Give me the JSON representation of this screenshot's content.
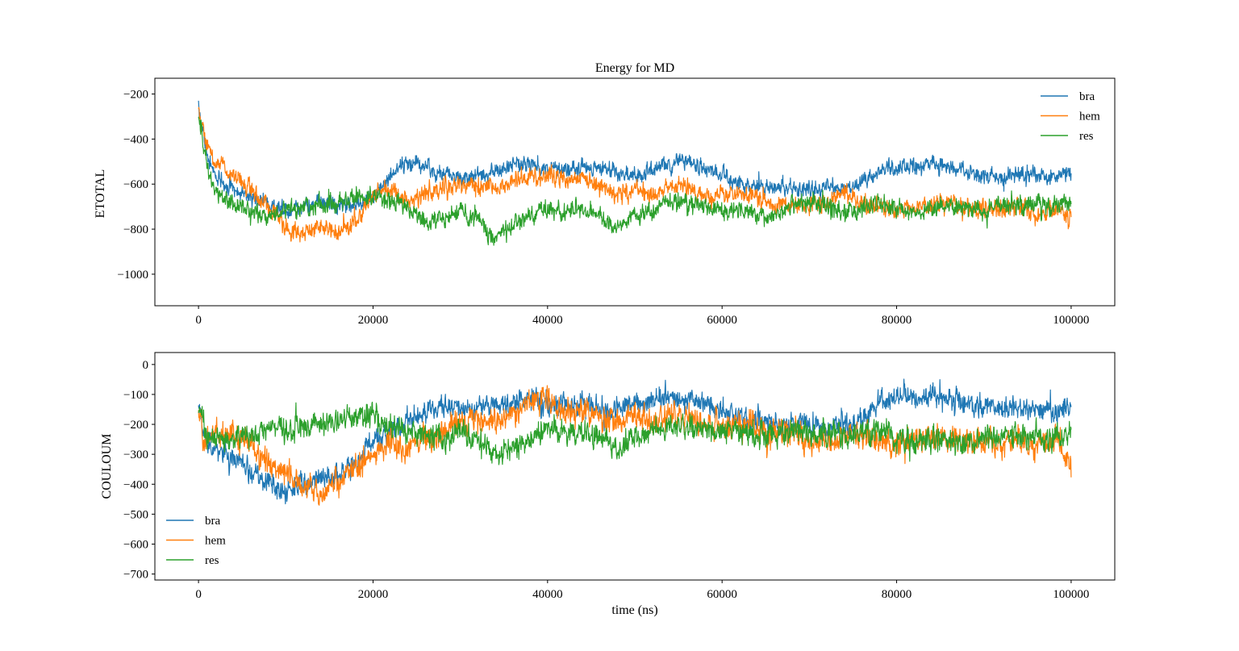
{
  "figure": {
    "title": "Energy for MD",
    "xlabel": "time (ns)"
  },
  "colors": {
    "bra": "#1f77b4",
    "hem": "#ff7f0e",
    "res": "#2ca02c"
  },
  "chart_data": [
    {
      "type": "line",
      "title": "Energy for MD",
      "xlabel": "",
      "ylabel": "ETOTAL",
      "xlim": [
        -5000,
        105000
      ],
      "ylim": [
        -1140,
        -130
      ],
      "xticks": [
        0,
        20000,
        40000,
        60000,
        80000,
        100000
      ],
      "xtick_labels": [
        "0",
        "20000",
        "40000",
        "60000",
        "80000",
        "100000"
      ],
      "yticks": [
        -1000,
        -800,
        -600,
        -400,
        -200
      ],
      "ytick_labels": [
        "−1000",
        "−800",
        "−600",
        "−400",
        "−200"
      ],
      "grid": false,
      "legend_position": "top-right",
      "series": [
        {
          "name": "bra",
          "color": "#1f77b4",
          "x": [
            0,
            500,
            1000,
            2000,
            4000,
            6000,
            8000,
            10000,
            12000,
            14000,
            16000,
            18000,
            20000,
            22000,
            24000,
            26000,
            28000,
            30000,
            32000,
            34000,
            36000,
            38000,
            40000,
            42000,
            44000,
            46000,
            48000,
            50000,
            52000,
            54000,
            56000,
            58000,
            60000,
            62000,
            64000,
            66000,
            68000,
            70000,
            72000,
            74000,
            76000,
            78000,
            80000,
            82000,
            84000,
            86000,
            88000,
            90000,
            92000,
            94000,
            96000,
            98000,
            100000
          ],
          "y": [
            -250,
            -360,
            -480,
            -560,
            -620,
            -660,
            -690,
            -720,
            -700,
            -680,
            -690,
            -700,
            -650,
            -560,
            -500,
            -520,
            -560,
            -580,
            -560,
            -540,
            -520,
            -510,
            -530,
            -530,
            -520,
            -530,
            -540,
            -560,
            -540,
            -510,
            -500,
            -530,
            -560,
            -600,
            -610,
            -620,
            -620,
            -630,
            -620,
            -610,
            -600,
            -540,
            -530,
            -520,
            -510,
            -530,
            -550,
            -560,
            -580,
            -560,
            -550,
            -560,
            -550
          ],
          "noise": 45
        },
        {
          "name": "hem",
          "color": "#ff7f0e",
          "x": [
            0,
            500,
            1000,
            2000,
            4000,
            6000,
            8000,
            10000,
            12000,
            14000,
            16000,
            18000,
            20000,
            22000,
            24000,
            26000,
            28000,
            30000,
            32000,
            34000,
            36000,
            38000,
            40000,
            42000,
            44000,
            46000,
            48000,
            50000,
            52000,
            54000,
            56000,
            58000,
            60000,
            62000,
            64000,
            66000,
            68000,
            70000,
            72000,
            74000,
            76000,
            78000,
            80000,
            82000,
            84000,
            86000,
            88000,
            90000,
            92000,
            94000,
            96000,
            98000,
            100000
          ],
          "y": [
            -260,
            -350,
            -440,
            -500,
            -560,
            -620,
            -700,
            -790,
            -820,
            -800,
            -810,
            -780,
            -640,
            -620,
            -680,
            -640,
            -620,
            -600,
            -600,
            -620,
            -580,
            -560,
            -560,
            -580,
            -560,
            -600,
            -650,
            -620,
            -660,
            -600,
            -620,
            -660,
            -640,
            -640,
            -660,
            -700,
            -700,
            -700,
            -690,
            -640,
            -680,
            -700,
            -720,
            -690,
            -690,
            -680,
            -700,
            -700,
            -720,
            -690,
            -740,
            -700,
            -760
          ],
          "noise": 50
        },
        {
          "name": "res",
          "color": "#2ca02c",
          "x": [
            0,
            500,
            1000,
            2000,
            4000,
            6000,
            8000,
            10000,
            12000,
            14000,
            16000,
            18000,
            20000,
            22000,
            24000,
            26000,
            28000,
            30000,
            32000,
            34000,
            36000,
            38000,
            40000,
            42000,
            44000,
            46000,
            48000,
            50000,
            52000,
            54000,
            56000,
            58000,
            60000,
            62000,
            64000,
            66000,
            68000,
            70000,
            72000,
            74000,
            76000,
            78000,
            80000,
            82000,
            84000,
            86000,
            88000,
            90000,
            92000,
            94000,
            96000,
            98000,
            100000
          ],
          "y": [
            -310,
            -400,
            -520,
            -640,
            -700,
            -720,
            -740,
            -720,
            -700,
            -690,
            -680,
            -660,
            -650,
            -680,
            -700,
            -760,
            -760,
            -720,
            -760,
            -840,
            -790,
            -740,
            -710,
            -720,
            -720,
            -740,
            -800,
            -730,
            -720,
            -670,
            -680,
            -700,
            -720,
            -710,
            -740,
            -740,
            -700,
            -680,
            -700,
            -720,
            -700,
            -690,
            -700,
            -720,
            -710,
            -700,
            -720,
            -710,
            -700,
            -700,
            -690,
            -700,
            -690
          ],
          "noise": 50
        }
      ]
    },
    {
      "type": "line",
      "title": "",
      "xlabel": "time (ns)",
      "ylabel": "COULOUM",
      "xlim": [
        -5000,
        105000
      ],
      "ylim": [
        -720,
        40
      ],
      "xticks": [
        0,
        20000,
        40000,
        60000,
        80000,
        100000
      ],
      "xtick_labels": [
        "0",
        "20000",
        "40000",
        "60000",
        "80000",
        "100000"
      ],
      "yticks": [
        -700,
        -600,
        -500,
        -400,
        -300,
        -200,
        -100,
        0
      ],
      "ytick_labels": [
        "−700",
        "−600",
        "−500",
        "−400",
        "−300",
        "−200",
        "−100",
        "0"
      ],
      "grid": false,
      "legend_position": "bottom-left",
      "series": [
        {
          "name": "bra",
          "color": "#1f77b4",
          "x": [
            0,
            500,
            1000,
            2000,
            4000,
            6000,
            8000,
            10000,
            12000,
            14000,
            16000,
            18000,
            20000,
            22000,
            24000,
            26000,
            28000,
            30000,
            32000,
            34000,
            36000,
            38000,
            40000,
            42000,
            44000,
            46000,
            48000,
            50000,
            52000,
            54000,
            56000,
            58000,
            60000,
            62000,
            64000,
            66000,
            68000,
            70000,
            72000,
            74000,
            76000,
            78000,
            80000,
            82000,
            84000,
            86000,
            88000,
            90000,
            92000,
            94000,
            96000,
            98000,
            100000
          ],
          "y": [
            -120,
            -200,
            -250,
            -280,
            -310,
            -370,
            -390,
            -420,
            -400,
            -380,
            -370,
            -330,
            -260,
            -220,
            -180,
            -160,
            -150,
            -140,
            -150,
            -130,
            -130,
            -120,
            -130,
            -140,
            -130,
            -150,
            -150,
            -130,
            -120,
            -110,
            -120,
            -130,
            -150,
            -180,
            -190,
            -200,
            -200,
            -200,
            -210,
            -200,
            -190,
            -120,
            -110,
            -100,
            -110,
            -120,
            -130,
            -140,
            -150,
            -140,
            -150,
            -160,
            -150
          ],
          "noise": 45
        },
        {
          "name": "hem",
          "color": "#ff7f0e",
          "x": [
            0,
            500,
            1000,
            2000,
            4000,
            6000,
            8000,
            10000,
            12000,
            14000,
            16000,
            18000,
            20000,
            22000,
            24000,
            26000,
            28000,
            30000,
            32000,
            34000,
            36000,
            38000,
            40000,
            42000,
            44000,
            46000,
            48000,
            50000,
            52000,
            54000,
            56000,
            58000,
            60000,
            62000,
            64000,
            66000,
            68000,
            70000,
            72000,
            74000,
            76000,
            78000,
            80000,
            82000,
            84000,
            86000,
            88000,
            90000,
            92000,
            94000,
            96000,
            98000,
            100000
          ],
          "y": [
            -150,
            -220,
            -240,
            -230,
            -240,
            -280,
            -330,
            -370,
            -400,
            -420,
            -390,
            -350,
            -300,
            -260,
            -280,
            -250,
            -220,
            -190,
            -180,
            -190,
            -160,
            -130,
            -110,
            -160,
            -150,
            -180,
            -200,
            -170,
            -200,
            -170,
            -180,
            -200,
            -210,
            -190,
            -210,
            -240,
            -230,
            -240,
            -260,
            -230,
            -240,
            -250,
            -270,
            -240,
            -240,
            -240,
            -260,
            -250,
            -260,
            -240,
            -280,
            -250,
            -350
          ],
          "noise": 55
        },
        {
          "name": "res",
          "color": "#2ca02c",
          "x": [
            0,
            500,
            1000,
            2000,
            4000,
            6000,
            8000,
            10000,
            12000,
            14000,
            16000,
            18000,
            20000,
            22000,
            24000,
            26000,
            28000,
            30000,
            32000,
            34000,
            36000,
            38000,
            40000,
            42000,
            44000,
            46000,
            48000,
            50000,
            52000,
            54000,
            56000,
            58000,
            60000,
            62000,
            64000,
            66000,
            68000,
            70000,
            72000,
            74000,
            76000,
            78000,
            80000,
            82000,
            84000,
            86000,
            88000,
            90000,
            92000,
            94000,
            96000,
            98000,
            100000
          ],
          "y": [
            -130,
            -200,
            -240,
            -250,
            -250,
            -230,
            -220,
            -210,
            -200,
            -200,
            -190,
            -180,
            -170,
            -200,
            -220,
            -230,
            -240,
            -230,
            -250,
            -300,
            -280,
            -250,
            -220,
            -230,
            -230,
            -240,
            -280,
            -240,
            -220,
            -200,
            -210,
            -220,
            -230,
            -220,
            -240,
            -250,
            -220,
            -220,
            -230,
            -240,
            -230,
            -230,
            -240,
            -260,
            -250,
            -250,
            -260,
            -250,
            -240,
            -240,
            -240,
            -250,
            -240
          ],
          "noise": 50
        }
      ]
    }
  ]
}
